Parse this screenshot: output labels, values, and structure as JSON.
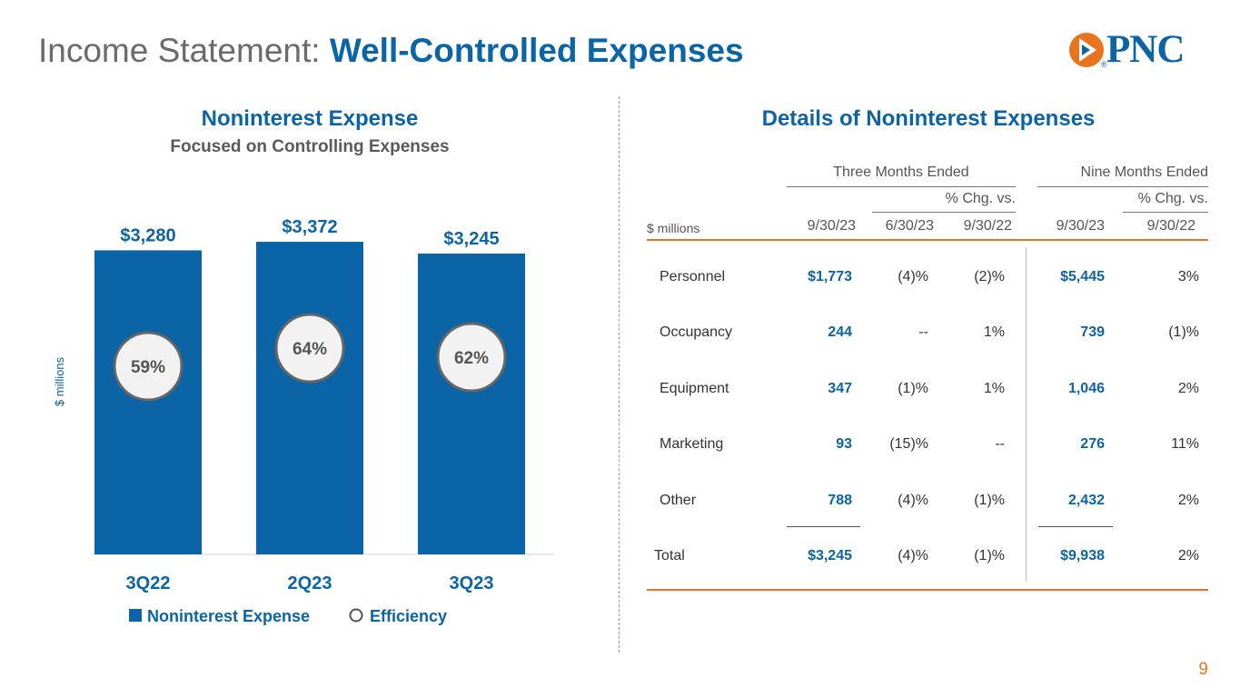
{
  "header": {
    "title_light": "Income Statement: ",
    "title_bold": "Well-Controlled Expenses",
    "logo_text": "PNC",
    "logo_registered": "®"
  },
  "colors": {
    "brand_blue": "#0a64a6",
    "accent_orange": "#e8741e",
    "circle_fill": "#f2f2f2",
    "circle_stroke": "#666666"
  },
  "left": {
    "title": "Noninterest Expense",
    "subtitle": "Focused on Controlling Expenses"
  },
  "chart_data": {
    "type": "bar",
    "title": "Noninterest Expense",
    "subtitle": "Focused on Controlling Expenses",
    "categories": [
      "3Q22",
      "2Q23",
      "3Q23"
    ],
    "series": [
      {
        "name": "Noninterest Expense",
        "values": [
          3280,
          3372,
          3245
        ],
        "labels": [
          "$3,280",
          "$3,372",
          "$3,245"
        ],
        "marker": "bar"
      },
      {
        "name": "Efficiency",
        "values": [
          59,
          64,
          62
        ],
        "labels": [
          "59%",
          "64%",
          "62%"
        ],
        "marker": "circle"
      }
    ],
    "ylabel": "$ millions",
    "xlabel": "",
    "ylim": [
      0,
      3500
    ],
    "grid": false,
    "legend": "bottom"
  },
  "table": {
    "title": "Details of Noninterest Expenses",
    "group_three": "Three Months Ended",
    "group_nine": "Nine Months Ended",
    "pct_chg_label": "% Chg. vs.",
    "units_label": "$ millions",
    "columns": [
      "9/30/23",
      "6/30/23",
      "9/30/22",
      "9/30/23",
      "9/30/22"
    ],
    "rows": [
      {
        "label": "Personnel",
        "q3": "$1,773",
        "vs_q2": "(4)%",
        "vs_q3_22": "(2)%",
        "nine": "$5,445",
        "nine_chg": "3%"
      },
      {
        "label": "Occupancy",
        "q3": "244",
        "vs_q2": "--",
        "vs_q3_22": "1%",
        "nine": "739",
        "nine_chg": "(1)%"
      },
      {
        "label": "Equipment",
        "q3": "347",
        "vs_q2": "(1)%",
        "vs_q3_22": "1%",
        "nine": "1,046",
        "nine_chg": "2%"
      },
      {
        "label": "Marketing",
        "q3": "93",
        "vs_q2": "(15)%",
        "vs_q3_22": "--",
        "nine": "276",
        "nine_chg": "11%"
      },
      {
        "label": "Other",
        "q3": "788",
        "vs_q2": "(4)%",
        "vs_q3_22": "(1)%",
        "nine": "2,432",
        "nine_chg": "2%"
      }
    ],
    "total": {
      "label": "Total",
      "q3": "$3,245",
      "vs_q2": "(4)%",
      "vs_q3_22": "(1)%",
      "nine": "$9,938",
      "nine_chg": "2%"
    }
  },
  "page_number": "9"
}
